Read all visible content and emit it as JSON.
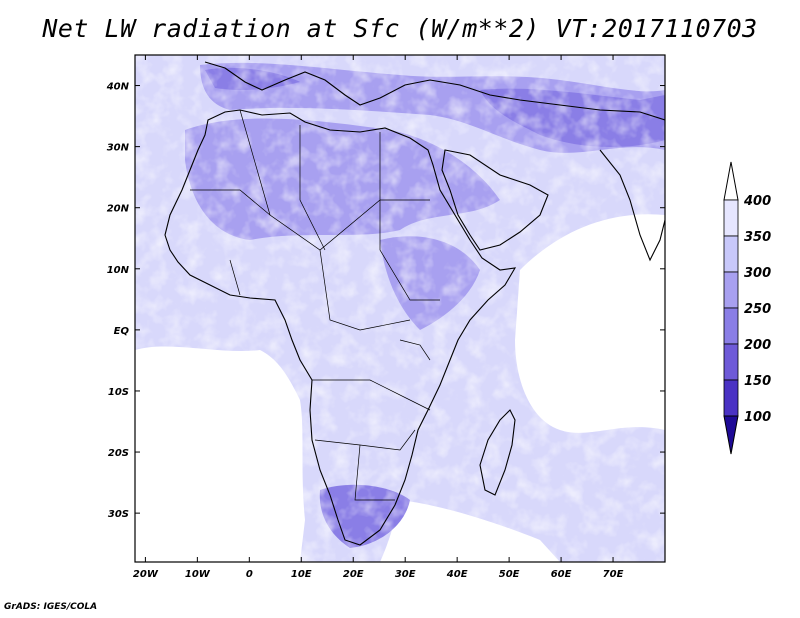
{
  "title": "Net LW radiation at Sfc (W/m**2) VT:2017110703",
  "credit": "GrADS: IGES/COLA",
  "map": {
    "lon_range": [
      -22,
      80
    ],
    "lat_range": [
      -38,
      45
    ],
    "lon_ticks": [
      {
        "value": -20,
        "label": "20W"
      },
      {
        "value": -10,
        "label": "10W"
      },
      {
        "value": 0,
        "label": "0"
      },
      {
        "value": 10,
        "label": "10E"
      },
      {
        "value": 20,
        "label": "20E"
      },
      {
        "value": 30,
        "label": "30E"
      },
      {
        "value": 40,
        "label": "40E"
      },
      {
        "value": 50,
        "label": "50E"
      },
      {
        "value": 60,
        "label": "60E"
      },
      {
        "value": 70,
        "label": "70E"
      }
    ],
    "lat_ticks": [
      {
        "value": 40,
        "label": "40N"
      },
      {
        "value": 30,
        "label": "30N"
      },
      {
        "value": 20,
        "label": "20N"
      },
      {
        "value": 10,
        "label": "10N"
      },
      {
        "value": 0,
        "label": "EQ"
      },
      {
        "value": -10,
        "label": "10S"
      },
      {
        "value": -20,
        "label": "20S"
      },
      {
        "value": -30,
        "label": "30S"
      }
    ]
  },
  "colorbar": {
    "levels": [
      {
        "label": "400",
        "color": "#e6e6ff"
      },
      {
        "label": "350",
        "color": "#c8c8fa"
      },
      {
        "label": "300",
        "color": "#a8a0f0"
      },
      {
        "label": "250",
        "color": "#8a7ee6"
      },
      {
        "label": "200",
        "color": "#6e5ad8"
      },
      {
        "label": "150",
        "color": "#4a32c4"
      },
      {
        "label": "100",
        "color": "#2a0fa8"
      }
    ],
    "top_color": "#ffffff",
    "bottom_color": "#1e0a96"
  }
}
